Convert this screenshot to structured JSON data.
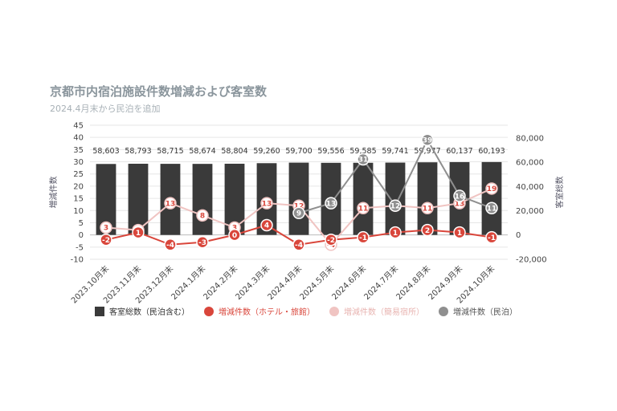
{
  "chart_data": {
    "type": "bar+line",
    "title": "京都市内宿泊施設件数増減および客室数",
    "subtitle": "2024.4月末から民泊を追加",
    "categories": [
      "2023.10月末",
      "2023.11月末",
      "2023.12月末",
      "2024.1月末",
      "2024.2月末",
      "2024.3月末",
      "2024.4月末",
      "2024.5月末",
      "2024.6月末",
      "2024.7月末",
      "2024.8月末",
      "2024.9月末",
      "2024.10月末"
    ],
    "left_axis": {
      "label": "増減件数",
      "min": -10,
      "max": 45,
      "step": 5
    },
    "right_axis": {
      "label": "客室総数",
      "min": -20000,
      "max": 80000,
      "ticks": [
        "-20,000",
        "0",
        "20,000",
        "40,000",
        "60,000",
        "80,000"
      ]
    },
    "bars": {
      "name": "客室総数（民泊含む）",
      "color": "#3a3a3a",
      "values": [
        58603,
        58793,
        58715,
        58674,
        58804,
        59260,
        59700,
        59556,
        59585,
        59741,
        59977,
        60137,
        60193
      ],
      "labels": [
        "58,603",
        "58,793",
        "58,715",
        "58,674",
        "58,804",
        "59,260",
        "59,700",
        "59,556",
        "59,585",
        "59,741",
        "59,977",
        "60,137",
        "60,193"
      ]
    },
    "series": [
      {
        "name": "増減件数（ホテル・旅館）",
        "color": "#d9463b",
        "values": [
          -2,
          1,
          -4,
          -3,
          0,
          4,
          -4,
          -2,
          -1,
          1,
          2,
          1,
          -1
        ]
      },
      {
        "name": "増減件数（簡易宿所）",
        "color": "#f0c4c2",
        "values": [
          3,
          2,
          13,
          8,
          3,
          13,
          12,
          -4,
          11,
          12,
          11,
          13,
          19
        ]
      },
      {
        "name": "増減件数（民泊）",
        "color": "#8f8f8f",
        "values": [
          null,
          null,
          null,
          null,
          null,
          null,
          9,
          13,
          31,
          12,
          39,
          16,
          11
        ]
      }
    ],
    "legend_position": "bottom",
    "grid": true
  }
}
